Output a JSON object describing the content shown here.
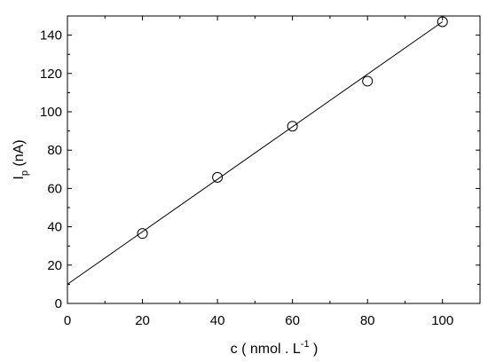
{
  "chart_data": {
    "type": "scatter",
    "xlabel": {
      "main": "c ( nmol . L",
      "sup": "-1",
      "end": " )"
    },
    "ylabel": {
      "main": "I",
      "sub": "p",
      "end": " (nA)"
    },
    "xlim": [
      0,
      110
    ],
    "ylim": [
      0,
      150
    ],
    "xticks": [
      0,
      20,
      40,
      60,
      80,
      100
    ],
    "yticks": [
      0,
      20,
      40,
      60,
      80,
      100,
      120,
      140
    ],
    "xtick_labels": [
      "0",
      "20",
      "40",
      "60",
      "80",
      "100"
    ],
    "ytick_labels": [
      "0",
      "20",
      "40",
      "60",
      "80",
      "100",
      "120",
      "140"
    ],
    "series": [
      {
        "marker": "open-circle",
        "x": [
          20,
          40,
          60,
          80,
          100
        ],
        "y": [
          36.5,
          65.8,
          92.5,
          116,
          147
        ]
      }
    ],
    "fit_line": {
      "x": [
        0,
        100
      ],
      "y": [
        10,
        147
      ]
    },
    "grid": false,
    "legend": false
  }
}
